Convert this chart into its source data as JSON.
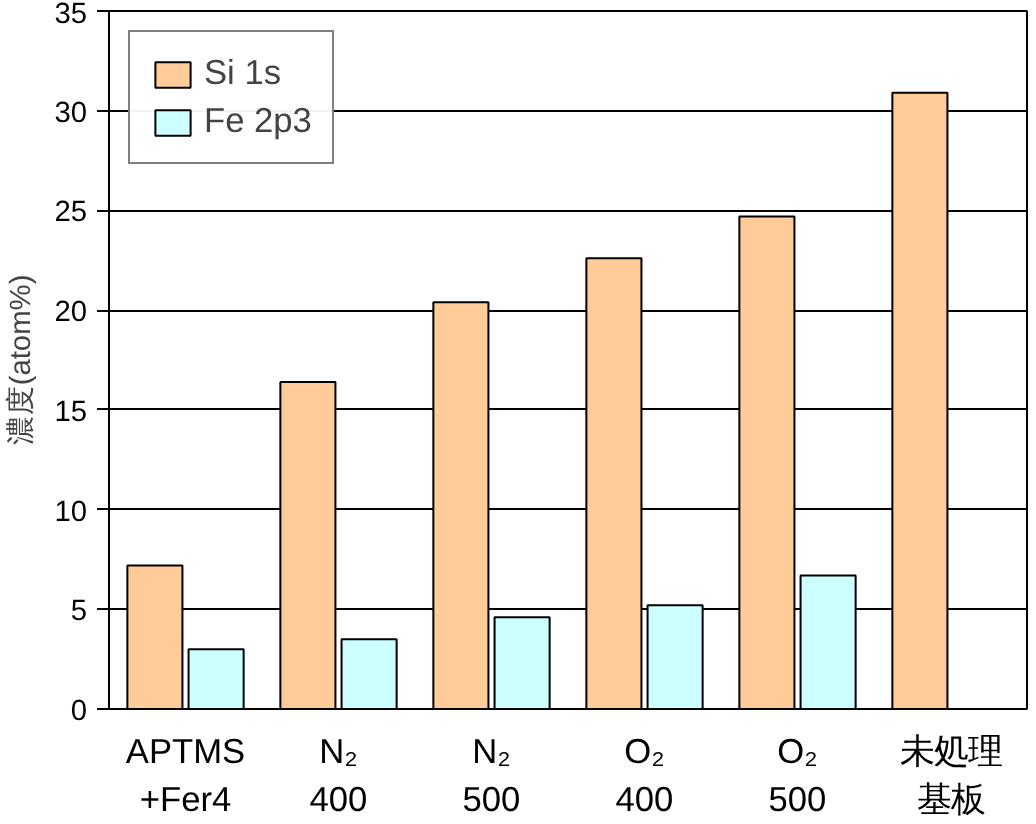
{
  "chart_data": {
    "type": "bar",
    "ylabel": "濃度(atom%)",
    "categories": [
      "APTMS\n+Fer4",
      "N₂\n400",
      "N₂\n500",
      "O₂\n400",
      "O₂\n500",
      "未処理基板"
    ],
    "series": [
      {
        "name": "Si 1s",
        "color": "#ffcc99",
        "values": [
          7.2,
          16.4,
          20.4,
          22.6,
          24.7,
          30.9
        ]
      },
      {
        "name": "Fe 2p3",
        "color": "#ccffff",
        "values": [
          3.0,
          3.5,
          4.6,
          5.2,
          6.7,
          null
        ]
      }
    ],
    "ylim": [
      0,
      35
    ],
    "yticks": [
      0,
      5,
      10,
      15,
      20,
      25,
      30,
      35
    ],
    "grid": "y",
    "legend": "top left"
  }
}
